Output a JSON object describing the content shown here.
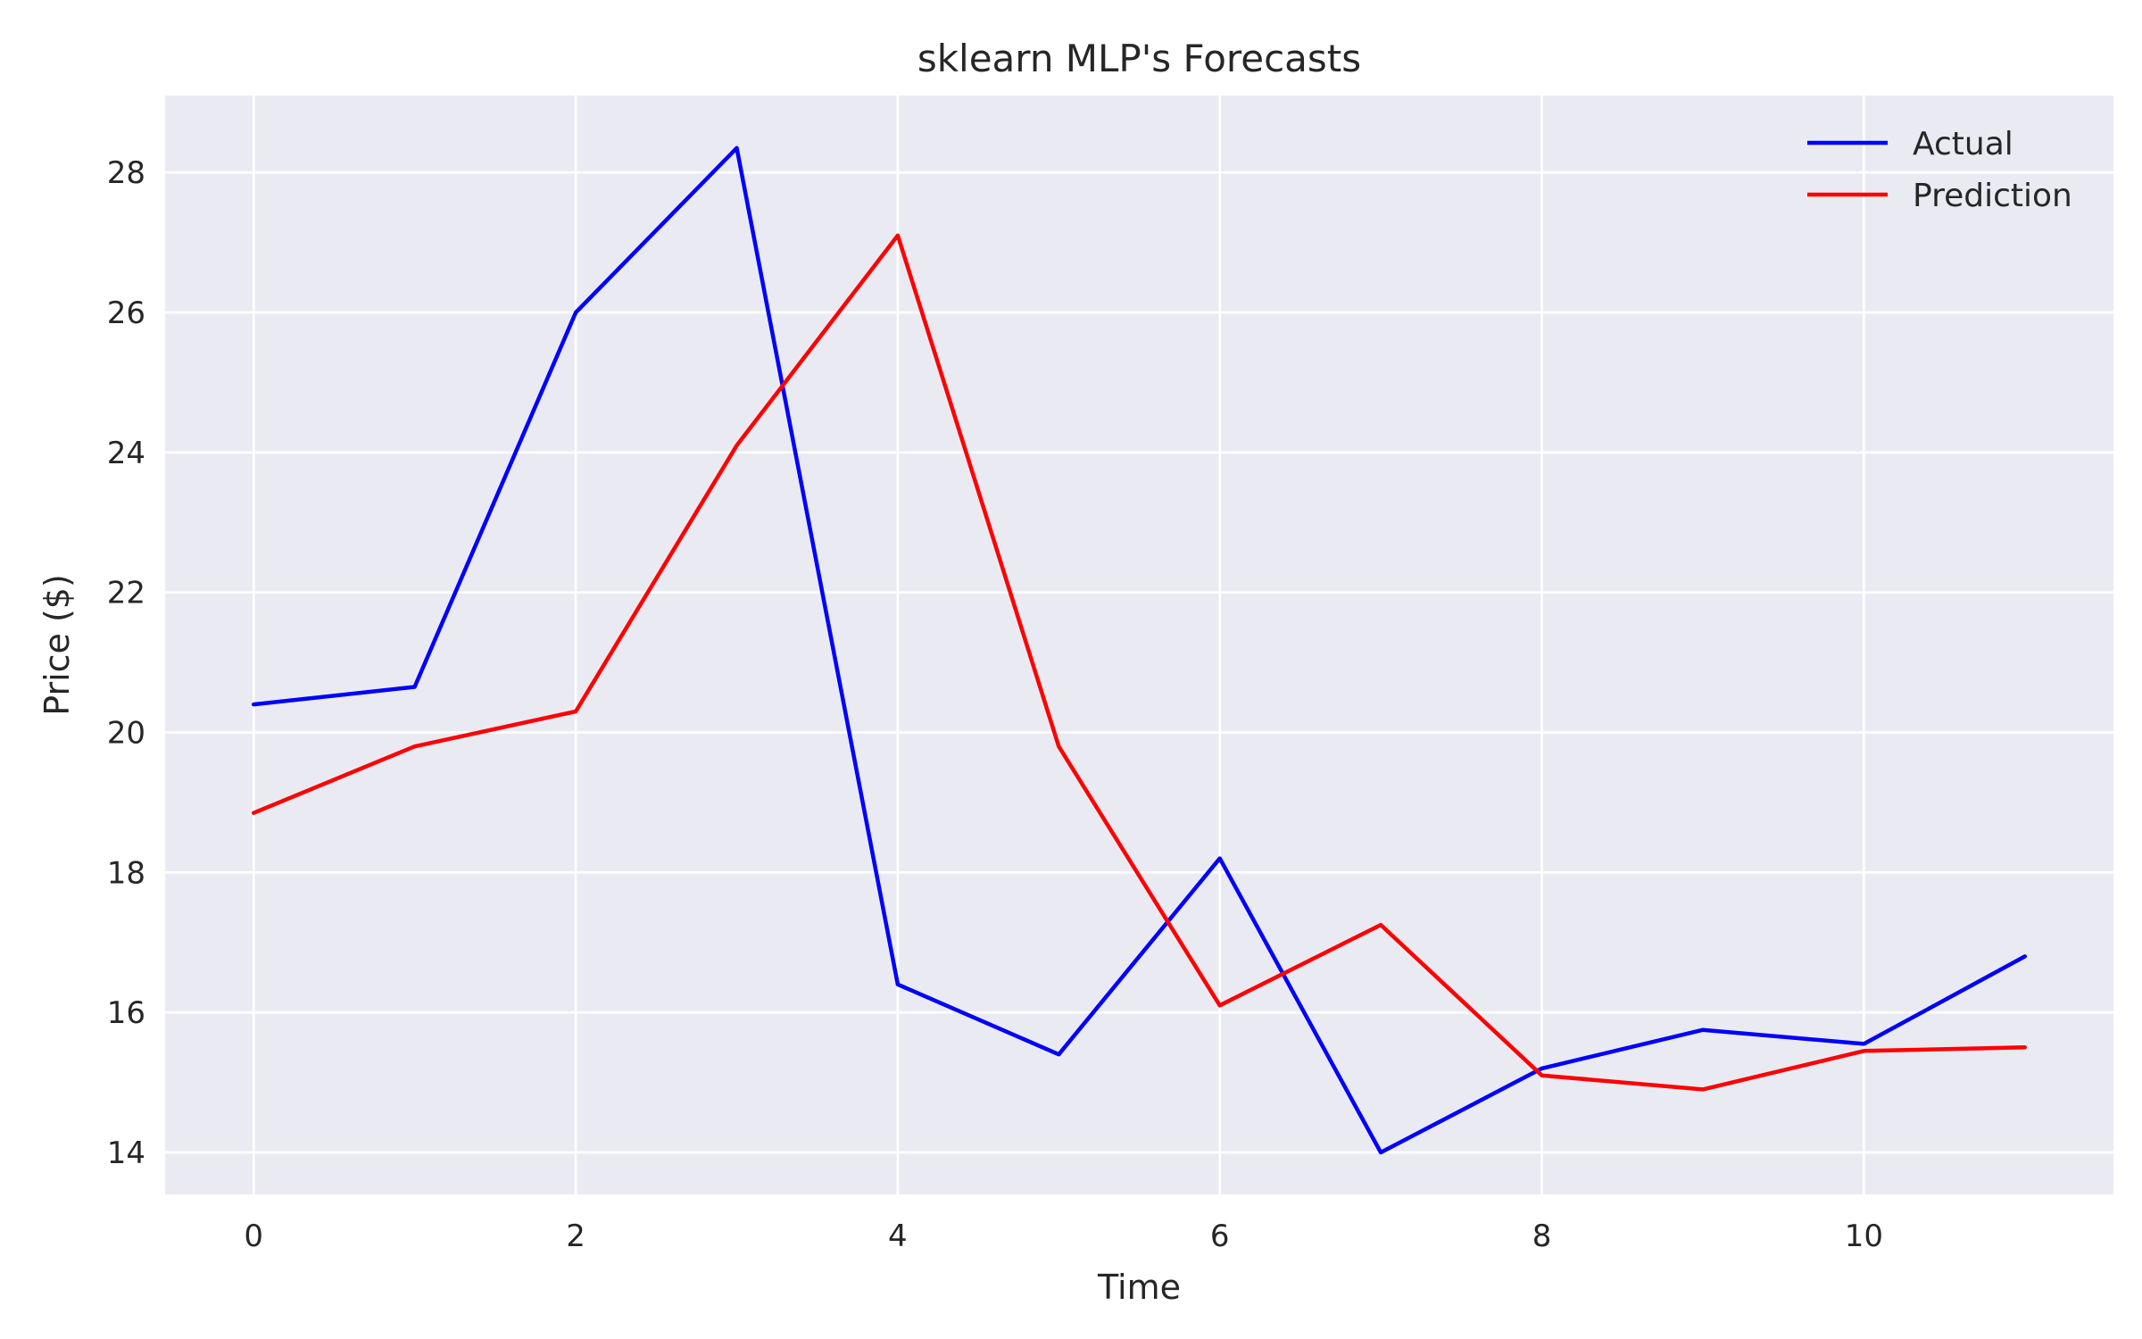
{
  "chart_data": {
    "type": "line",
    "title": "sklearn MLP's Forecasts",
    "xlabel": "Time",
    "ylabel": "Price ($)",
    "x": [
      0,
      1,
      2,
      3,
      4,
      5,
      6,
      7,
      8,
      9,
      10,
      11
    ],
    "xlim": [
      -0.55,
      11.55
    ],
    "ylim": [
      13.4,
      29.1
    ],
    "xticks": [
      0,
      2,
      4,
      6,
      8,
      10
    ],
    "yticks": [
      14,
      16,
      18,
      20,
      22,
      24,
      26,
      28
    ],
    "grid": true,
    "legend_position": "top-right",
    "background_color": "#eaeaf2",
    "grid_color": "#ffffff",
    "series": [
      {
        "name": "Actual",
        "color": "#0000ff",
        "values": [
          20.4,
          20.65,
          26.0,
          28.35,
          16.4,
          15.4,
          18.2,
          14.0,
          15.2,
          15.75,
          15.55,
          16.8
        ]
      },
      {
        "name": "Prediction",
        "color": "#ff0000",
        "values": [
          18.85,
          19.8,
          20.3,
          24.1,
          27.1,
          19.8,
          16.1,
          17.25,
          15.1,
          14.9,
          15.45,
          15.5
        ]
      }
    ]
  }
}
